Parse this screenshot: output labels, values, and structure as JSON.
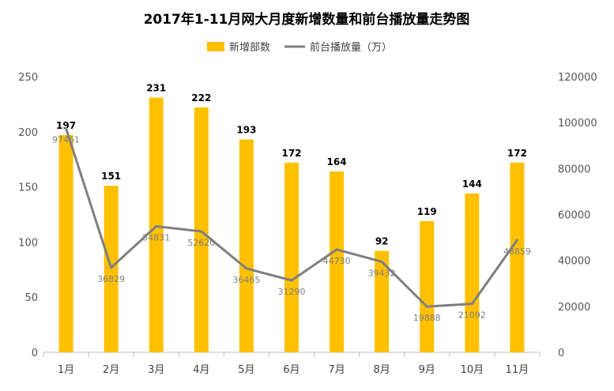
{
  "chart_data": {
    "type": "bar",
    "title": "2017年1-11月网大月度新增数量和前台播放量走势图",
    "categories": [
      "1月",
      "2月",
      "3月",
      "4月",
      "5月",
      "6月",
      "7月",
      "8月",
      "9月",
      "10月",
      "11月"
    ],
    "series": [
      {
        "name": "新增部数",
        "type": "bar",
        "axis": "left",
        "color": "#FFC000",
        "values": [
          197,
          151,
          231,
          222,
          193,
          172,
          164,
          92,
          119,
          144,
          172
        ],
        "value_labels": [
          "197",
          "151",
          "231",
          "222",
          "193",
          "172",
          "164",
          "92",
          "119",
          "144",
          "172"
        ]
      },
      {
        "name": "前台播放量（万）",
        "type": "line",
        "axis": "right",
        "color": "#7F7F7F",
        "values": [
          97461,
          36829,
          54831,
          52620,
          36465,
          31290,
          44730,
          39432,
          19888,
          21092,
          48859
        ],
        "value_labels": [
          "97461",
          "36829",
          "54831",
          "52620",
          "36465",
          "31290",
          "44730",
          "39432",
          "19888",
          "21092",
          "48859"
        ]
      }
    ],
    "y_left": {
      "min": 0,
      "max": 250,
      "ticks": [
        "0",
        "50",
        "100",
        "150",
        "200",
        "250"
      ]
    },
    "y_right": {
      "min": 0,
      "max": 120000,
      "ticks": [
        "0",
        "20000",
        "40000",
        "60000",
        "80000",
        "100000",
        "120000"
      ]
    },
    "legend": {
      "position": "top"
    },
    "grid": false
  }
}
